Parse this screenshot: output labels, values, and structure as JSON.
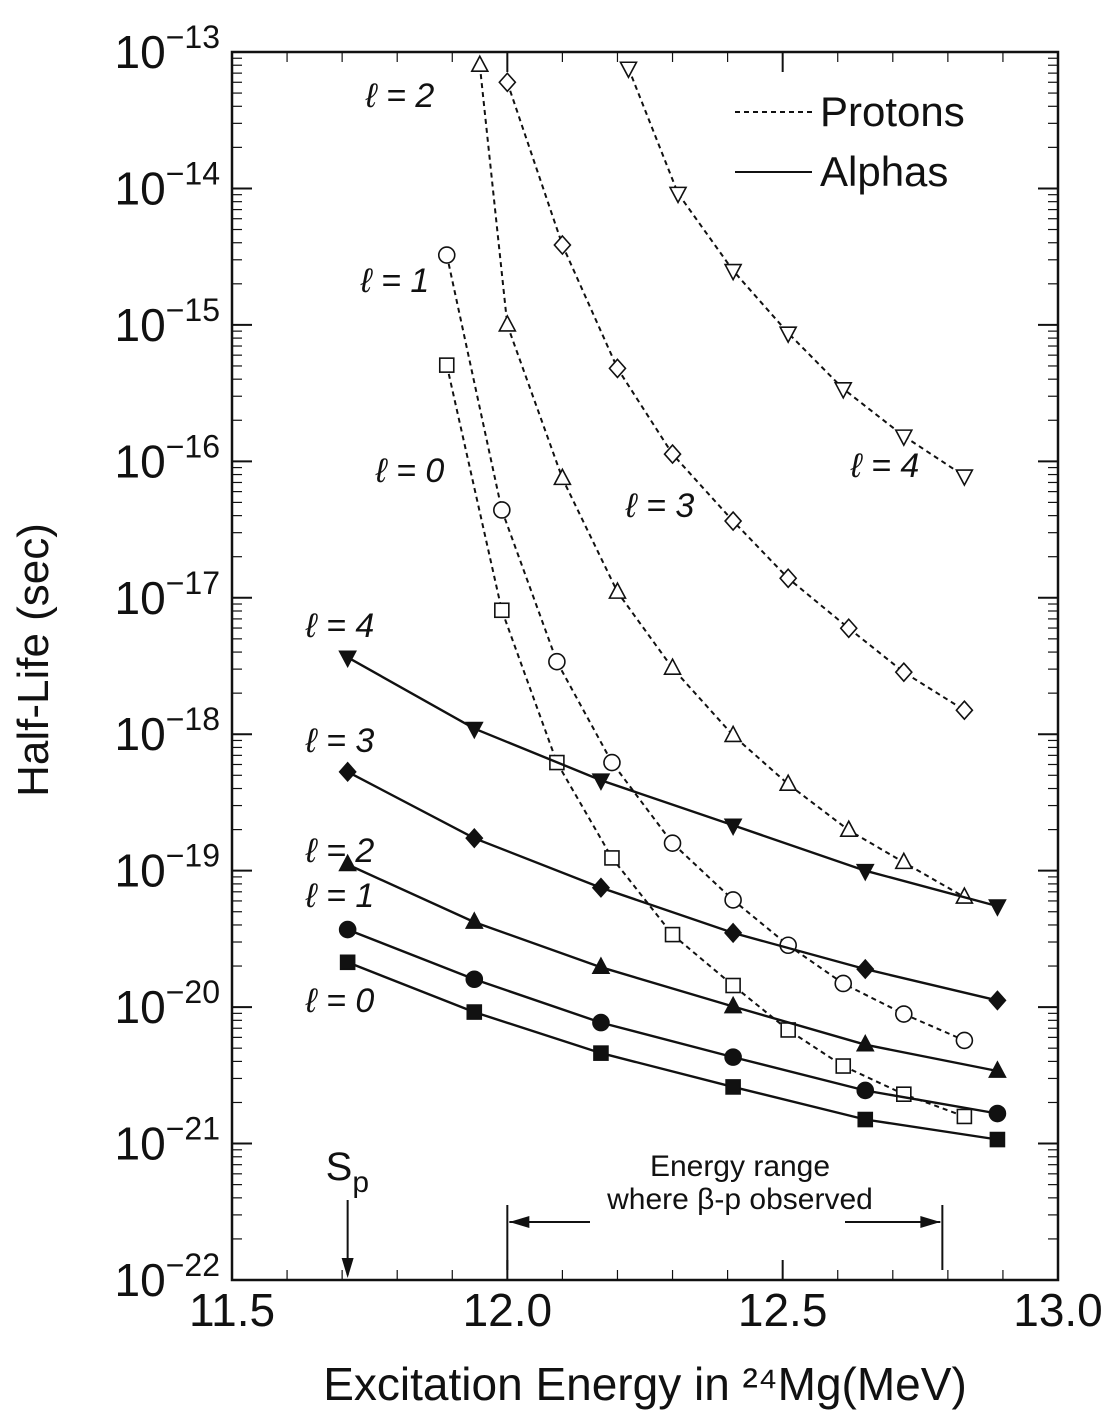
{
  "chart_data": {
    "type": "line",
    "y_label": "Half-Life (sec)",
    "x_label": "Excitation Energy in ²⁴Mg(MeV)",
    "xlim": [
      11.5,
      13.0
    ],
    "xticks": [
      {
        "value": 11.5,
        "label": "11.5"
      },
      {
        "value": 12,
        "label": "12.0"
      },
      {
        "value": 12.5,
        "label": "12.5"
      },
      {
        "value": 13,
        "label": "13.0"
      }
    ],
    "ylim": [
      1e-22,
      1e-13
    ],
    "yticks": [
      {
        "value": 1e-13,
        "label": "10−13"
      },
      {
        "value": 1e-14,
        "label": "10−14"
      },
      {
        "value": 1e-15,
        "label": "10−15"
      },
      {
        "value": 1e-16,
        "label": "10−16"
      },
      {
        "value": 1e-17,
        "label": "10−17"
      },
      {
        "value": 1e-18,
        "label": "10−18"
      },
      {
        "value": 1e-19,
        "label": "10−19"
      },
      {
        "value": 1e-20,
        "label": "10−20"
      },
      {
        "value": 1e-21,
        "label": "10−21"
      },
      {
        "value": 1e-22,
        "label": "10−22"
      }
    ],
    "y_log": true,
    "color": "#111111",
    "legend": [
      {
        "name": "Protons",
        "style": "dotted"
      },
      {
        "name": "Alphas",
        "style": "solid"
      }
    ],
    "legend_position": "upper right",
    "series": [
      {
        "name": "ℓ = 0",
        "group": 0,
        "marker": "square",
        "filled": false,
        "x": [
          11.89,
          11.99,
          12.09,
          12.19,
          12.3,
          12.41,
          12.51,
          12.61,
          12.72,
          12.83
        ],
        "values": [
          5.07e-16,
          8.1e-18,
          6.2e-19,
          1.24e-19,
          3.4e-20,
          1.44e-20,
          6.8e-21,
          3.7e-21,
          2.3e-21,
          1.58e-21
        ]
      },
      {
        "name": "ℓ = 1",
        "group": 0,
        "marker": "circle",
        "filled": false,
        "x": [
          11.89,
          11.99,
          12.09,
          12.19,
          12.3,
          12.41,
          12.51,
          12.61,
          12.72,
          12.83
        ],
        "values": [
          3.25e-15,
          4.4e-17,
          3.4e-18,
          6.2e-19,
          1.59e-19,
          6.1e-20,
          2.84e-20,
          1.49e-20,
          8.9e-21,
          5.7e-21
        ]
      },
      {
        "name": "ℓ = 2",
        "group": 0,
        "marker": "triangle",
        "filled": false,
        "x": [
          11.95,
          12.0,
          12.1,
          12.2,
          12.3,
          12.41,
          12.51,
          12.62,
          12.72,
          12.83
        ],
        "values": [
          8e-14,
          1e-15,
          7.5e-17,
          1.1e-17,
          3.05e-18,
          9.8e-19,
          4.3e-19,
          1.98e-19,
          1.15e-19,
          6.4e-20
        ]
      },
      {
        "name": "ℓ = 3",
        "group": 0,
        "marker": "diamond",
        "filled": false,
        "x": [
          12.0,
          12.1,
          12.2,
          12.3,
          12.41,
          12.51,
          12.62,
          12.72,
          12.83
        ],
        "values": [
          6e-14,
          3.85e-15,
          4.8e-16,
          1.13e-16,
          3.65e-17,
          1.39e-17,
          5.98e-18,
          2.85e-18,
          1.5e-18
        ]
      },
      {
        "name": "ℓ = 4",
        "group": 0,
        "marker": "down-triangle",
        "filled": false,
        "x": [
          12.22,
          12.31,
          12.41,
          12.51,
          12.61,
          12.72,
          12.83
        ],
        "values": [
          7.6e-14,
          9.2e-15,
          2.5e-15,
          8.7e-16,
          3.4e-16,
          1.53e-16,
          7.8e-17
        ]
      },
      {
        "name": "ℓ = 4",
        "group": 1,
        "marker": "down-triangle",
        "filled": true,
        "x": [
          11.71,
          11.94,
          12.17,
          12.41,
          12.65,
          12.89
        ],
        "values": [
          3.66e-18,
          1.1e-18,
          4.6e-19,
          2.15e-19,
          1e-19,
          5.5e-20
        ]
      },
      {
        "name": "ℓ = 3",
        "group": 1,
        "marker": "diamond",
        "filled": true,
        "x": [
          11.71,
          11.94,
          12.17,
          12.41,
          12.65,
          12.89
        ],
        "values": [
          5.3e-19,
          1.73e-19,
          7.5e-20,
          3.5e-20,
          1.9e-20,
          1.12e-20
        ]
      },
      {
        "name": "ℓ = 2",
        "group": 1,
        "marker": "triangle",
        "filled": true,
        "x": [
          11.71,
          11.94,
          12.17,
          12.41,
          12.65,
          12.89
        ],
        "values": [
          1.11e-19,
          4.2e-20,
          1.96e-20,
          1.01e-20,
          5.3e-21,
          3.4e-21
        ]
      },
      {
        "name": "ℓ = 1",
        "group": 1,
        "marker": "circle",
        "filled": true,
        "x": [
          11.71,
          11.94,
          12.17,
          12.41,
          12.65,
          12.89
        ],
        "values": [
          3.7e-20,
          1.6e-20,
          7.7e-21,
          4.3e-21,
          2.45e-21,
          1.66e-21
        ]
      },
      {
        "name": "ℓ = 0",
        "group": 1,
        "marker": "square",
        "filled": true,
        "x": [
          11.71,
          11.94,
          12.17,
          12.41,
          12.65,
          12.89
        ],
        "values": [
          2.13e-20,
          9.2e-21,
          4.6e-21,
          2.6e-21,
          1.5e-21,
          1.07e-21
        ]
      }
    ],
    "annotations": {
      "sp": {
        "text": "Sp",
        "x": 11.71
      },
      "range": {
        "lines": [
          "Energy range",
          "where β-p observed"
        ],
        "x": [
          12.0,
          12.79
        ]
      }
    }
  }
}
